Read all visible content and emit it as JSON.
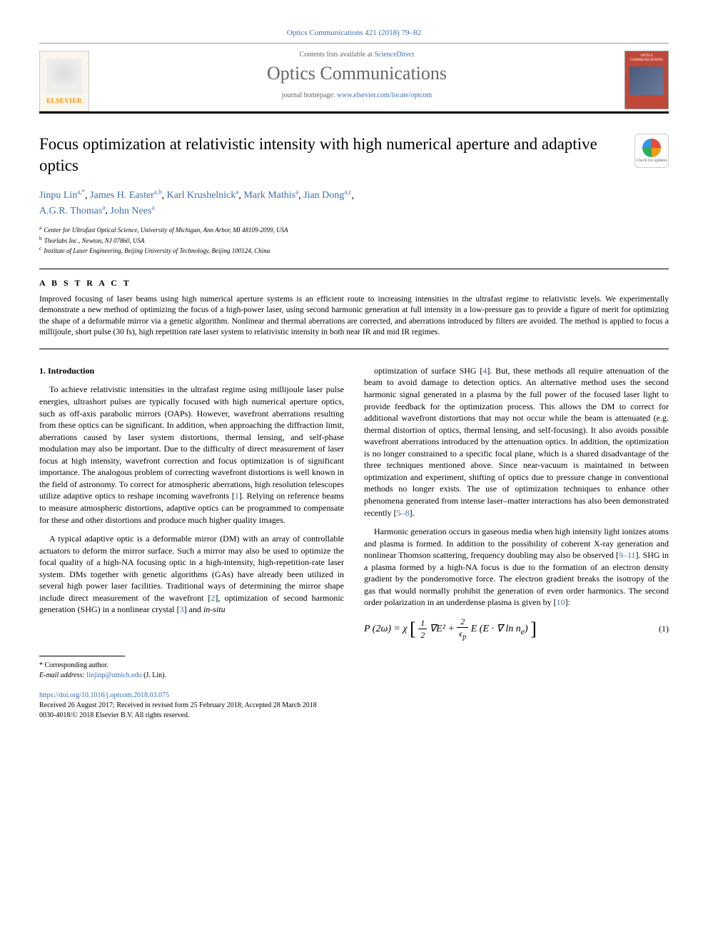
{
  "header": {
    "citation": "Optics Communications 421 (2018) 79–82",
    "contents_prefix": "Contents lists available at ",
    "contents_link": "ScienceDirect",
    "journal_name": "Optics Communications",
    "homepage_prefix": "journal homepage: ",
    "homepage_url": "www.elsevier.com/locate/optcom",
    "publisher": "ELSEVIER",
    "cover_title": "OPTICS COMMUNICATIONS"
  },
  "title": "Focus optimization at relativistic intensity with high numerical aperture and adaptive optics",
  "check_updates_label": "Check for updates",
  "authors": [
    {
      "name": "Jinpu Lin",
      "aff": "a,",
      "mark": "*"
    },
    {
      "name": "James H. Easter",
      "aff": "a,b"
    },
    {
      "name": "Karl Krushelnick",
      "aff": "a"
    },
    {
      "name": "Mark Mathis",
      "aff": "a"
    },
    {
      "name": "Jian Dong",
      "aff": "a,c"
    },
    {
      "name": "A.G.R. Thomas",
      "aff": "a"
    },
    {
      "name": "John Nees",
      "aff": "a"
    }
  ],
  "affiliations": [
    {
      "key": "a",
      "text": "Center for Ultrafast Optical Science, University of Michigan, Ann Arbor, MI 48109-2099, USA"
    },
    {
      "key": "b",
      "text": "Thorlabs Inc., Newton, NJ 07860, USA"
    },
    {
      "key": "c",
      "text": "Institute of Laser Engineering, Beijing University of Technology, Beijing 100124, China"
    }
  ],
  "abstract": {
    "label": "A B S T R A C T",
    "text": "Improved focusing of laser beams using high numerical aperture systems is an efficient route to increasing intensities in the ultrafast regime to relativistic levels. We experimentally demonstrate a new method of optimizing the focus of a high-power laser, using second harmonic generation at full intensity in a low-pressure gas to provide a figure of merit for optimizing the shape of a deformable mirror via a genetic algorithm. Nonlinear and thermal aberrations are corrected, and aberrations introduced by filters are avoided. The method is applied to focus a millijoule, short pulse (30 fs), high repetition rate laser system to relativistic intensity in both near IR and mid IR regimes."
  },
  "section1": {
    "heading": "1. Introduction",
    "p1": "To achieve relativistic intensities in the ultrafast regime using millijoule laser pulse energies, ultrashort pulses are typically focused with high numerical aperture optics, such as off-axis parabolic mirrors (OAPs). However, wavefront aberrations resulting from these optics can be significant. In addition, when approaching the diffraction limit, aberrations caused by laser system distortions, thermal lensing, and self-phase modulation may also be important. Due to the difficulty of direct measurement of laser focus at high intensity, wavefront correction and focus optimization is of significant importance. The analogous problem of correcting wavefront distortions is well known in the field of astronomy. To correct for atmospheric aberrations, high resolution telescopes utilize adaptive optics to reshape incoming wavefronts [1]. Relying on reference beams to measure atmospheric distortions, adaptive optics can be programmed to compensate for these and other distortions and produce much higher quality images.",
    "p2": "A typical adaptive optic is a deformable mirror (DM) with an array of controllable actuators to deform the mirror surface. Such a mirror may also be used to optimize the focal quality of a high-NA focusing optic in a high-intensity, high-repetition-rate laser system. DMs together with genetic algorithms (GAs) have already been utilized in several high power laser facilities. Traditional ways of determining the mirror shape include direct measurement of the wavefront [2], optimization of second harmonic generation (SHG) in a nonlinear crystal [3] and in-situ",
    "p3": "optimization of surface SHG [4]. But, these methods all require attenuation of the beam to avoid damage to detection optics. An alternative method uses the second harmonic signal generated in a plasma by the full power of the focused laser light to provide feedback for the optimization process. This allows the DM to correct for additional wavefront distortions that may not occur while the beam is attenuated (e.g. thermal distortion of optics, thermal lensing, and self-focusing). It also avoids possible wavefront aberrations introduced by the attenuation optics. In addition, the optimization is no longer constrained to a specific focal plane, which is a shared disadvantage of the three techniques mentioned above. Since near-vacuum is maintained in between optimization and experiment, shifting of optics due to pressure change in conventional methods no longer exists. The use of optimization techniques to enhance other phenomena generated from intense laser–matter interactions has also been demonstrated recently [5–8].",
    "p4": "Harmonic generation occurs in gaseous media when high intensity light ionizes atoms and plasma is formed. In addition to the possibility of coherent X-ray generation and nonlinear Thomson scattering, frequency doubling may also be observed [9–11]. SHG in a plasma formed by a high-NA focus is due to the formation of an electron density gradient by the ponderomotive force. The electron gradient breaks the isotropy of the gas that would normally prohibit the generation of even order harmonics. The second order polarization in an underdense plasma is given by [10]:"
  },
  "equation1": {
    "lhs": "P (2ω) = χ",
    "frac1_num": "1",
    "frac1_den": "2",
    "mid1": "∇E² +",
    "frac2_num": "2",
    "frac2_den": "ϵ_p",
    "rhs": "E (E · ∇ ln n_e)",
    "number": "(1)"
  },
  "footnotes": {
    "corr_label": "* Corresponding author.",
    "email_label": "E-mail address:",
    "email": "linjinp@umich.edu",
    "email_author": "(J. Lin)."
  },
  "article_info": {
    "doi": "https://doi.org/10.1016/j.optcom.2018.03.075",
    "dates": "Received 26 August 2017; Received in revised form 25 February 2018; Accepted 28 March 2018",
    "copyright": "0030-4018/© 2018 Elsevier B.V. All rights reserved."
  },
  "refs": {
    "r1": "1",
    "r2": "2",
    "r3": "3",
    "r4": "4",
    "r5_8": "5–8",
    "r9_11": "9–11",
    "r10": "10"
  }
}
